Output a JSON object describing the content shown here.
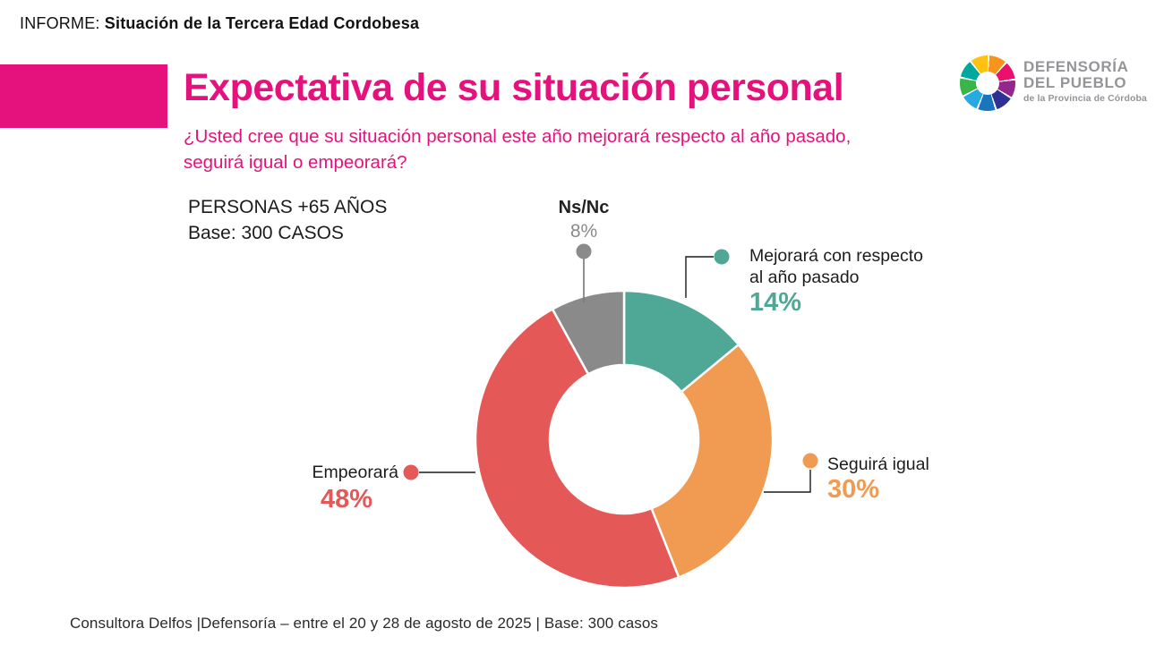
{
  "header": {
    "kicker": "INFORME:",
    "report_title": " Situación de la Tercera Edad Cordobesa"
  },
  "logo": {
    "name1": "DEFENSORÍA",
    "name2": "DEL PUEBLO",
    "tagline": "de la Provincia de Córdoba",
    "text_color": "#939598",
    "mark_colors": [
      "#F7941D",
      "#EC106E",
      "#93278F",
      "#2E3192",
      "#1B75BC",
      "#27AAE1",
      "#39B54A",
      "#00A79D",
      "#FFC20E"
    ]
  },
  "accent_color": "#E5127D",
  "slide": {
    "title": "Expectativa de su situación personal",
    "subtitle_line1": "¿Usted cree que su situación personal este año mejorará respecto al año pasado,",
    "subtitle_line2": "seguirá igual o empeorará?",
    "sample_line1": "PERSONAS +65 AÑOS",
    "sample_line2": "Base: 300 CASOS",
    "footer": "Consultora Delfos |Defensoría – entre el 20 y 28 de agosto de 2025 | Base: 300 casos"
  },
  "chart_data": {
    "type": "pie",
    "subtype": "donut",
    "title": "Expectativa de su situación personal",
    "base": "300 casos",
    "start_angle_deg": 0,
    "direction": "clockwise",
    "inner_radius_ratio": 0.5,
    "segments": [
      {
        "key": "mejorara",
        "label": "Mejorará con respecto al año pasado",
        "label_line1": "Mejorará con respecto",
        "label_line2": "al año pasado",
        "value": 14,
        "pct_label": "14%",
        "color": "#4FA896"
      },
      {
        "key": "seguira",
        "label": "Seguirá igual",
        "value": 30,
        "pct_label": "30%",
        "color": "#F09B51"
      },
      {
        "key": "empeorara",
        "label": "Empeorará",
        "value": 48,
        "pct_label": "48%",
        "color": "#E45858"
      },
      {
        "key": "nsnc",
        "label": "Ns/Nc",
        "value": 8,
        "pct_label": "8%",
        "color": "#8A8A8A"
      }
    ]
  }
}
